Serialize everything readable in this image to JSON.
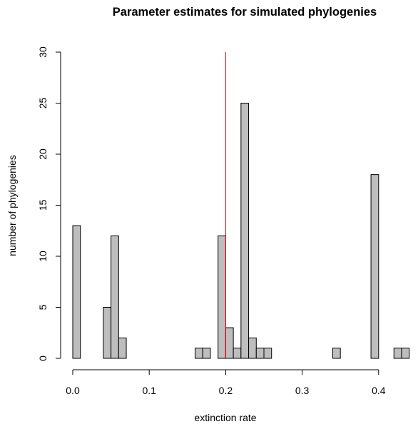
{
  "chart_data": {
    "type": "bar",
    "title": "Parameter estimates for simulated phylogenies",
    "xlabel": "extinction rate",
    "ylabel": "number of phylogenies",
    "xlim": [
      0.0,
      0.45
    ],
    "ylim": [
      0,
      30
    ],
    "bin_width": 0.01,
    "x_ticks": [
      "0.0",
      "0.1",
      "0.2",
      "0.3",
      "0.4"
    ],
    "y_ticks": [
      "0",
      "5",
      "10",
      "15",
      "20",
      "25",
      "30"
    ],
    "bars": [
      {
        "x0": 0.0,
        "x1": 0.01,
        "count": 13
      },
      {
        "x0": 0.04,
        "x1": 0.05,
        "count": 5
      },
      {
        "x0": 0.05,
        "x1": 0.06,
        "count": 12
      },
      {
        "x0": 0.06,
        "x1": 0.07,
        "count": 2
      },
      {
        "x0": 0.16,
        "x1": 0.17,
        "count": 1
      },
      {
        "x0": 0.17,
        "x1": 0.18,
        "count": 1
      },
      {
        "x0": 0.19,
        "x1": 0.2,
        "count": 12
      },
      {
        "x0": 0.2,
        "x1": 0.21,
        "count": 3
      },
      {
        "x0": 0.21,
        "x1": 0.22,
        "count": 1
      },
      {
        "x0": 0.22,
        "x1": 0.23,
        "count": 25
      },
      {
        "x0": 0.23,
        "x1": 0.24,
        "count": 2
      },
      {
        "x0": 0.24,
        "x1": 0.25,
        "count": 1
      },
      {
        "x0": 0.25,
        "x1": 0.26,
        "count": 1
      },
      {
        "x0": 0.34,
        "x1": 0.35,
        "count": 1
      },
      {
        "x0": 0.39,
        "x1": 0.4,
        "count": 18
      },
      {
        "x0": 0.42,
        "x1": 0.43,
        "count": 1
      },
      {
        "x0": 0.43,
        "x1": 0.44,
        "count": 1
      }
    ],
    "reference_line": {
      "x": 0.2,
      "color": "#ff0000"
    },
    "bar_fill": "#bebebe",
    "grid": false
  }
}
